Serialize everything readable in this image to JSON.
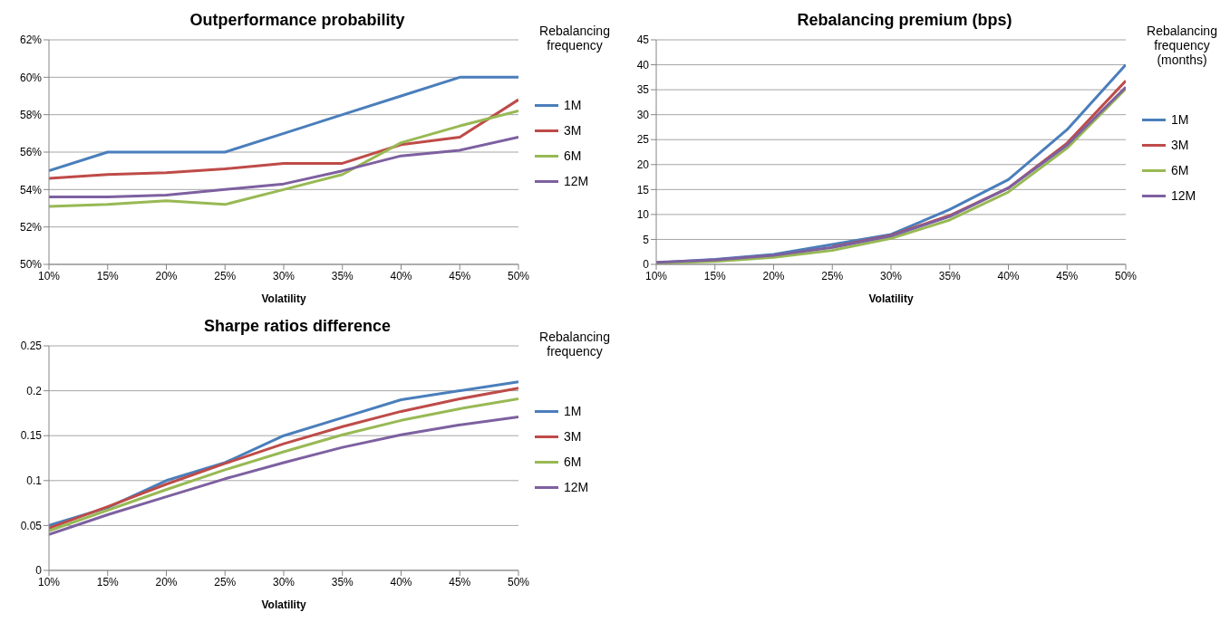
{
  "chart_data": [
    {
      "type": "line",
      "title": "Outperformance probability",
      "xlabel": "Volatility",
      "legend_title": "Rebalancing frequency",
      "legend": "right",
      "grid": "y",
      "categories": [
        "10%",
        "15%",
        "20%",
        "25%",
        "30%",
        "35%",
        "40%",
        "45%",
        "50%"
      ],
      "ylim": [
        50,
        62
      ],
      "yticks": [
        {
          "value": 50,
          "label": "50%"
        },
        {
          "value": 52,
          "label": "52%"
        },
        {
          "value": 54,
          "label": "54%"
        },
        {
          "value": 56,
          "label": "56%"
        },
        {
          "value": 58,
          "label": "58%"
        },
        {
          "value": 60,
          "label": "60%"
        },
        {
          "value": 62,
          "label": "62%"
        }
      ],
      "series": [
        {
          "name": "1M",
          "color": "#4a7ebb",
          "values": [
            55,
            56,
            56,
            56,
            57,
            58,
            59,
            60,
            60
          ]
        },
        {
          "name": "3M",
          "color": "#be4b48",
          "values": [
            54.6,
            54.8,
            54.9,
            55.1,
            55.4,
            55.4,
            56.4,
            56.8,
            58.8
          ]
        },
        {
          "name": "6M",
          "color": "#98b954",
          "values": [
            53.1,
            53.2,
            53.4,
            53.2,
            54,
            54.8,
            56.5,
            57.4,
            58.2
          ]
        },
        {
          "name": "12M",
          "color": "#7d60a0",
          "values": [
            53.6,
            53.6,
            53.7,
            54,
            54.3,
            55,
            55.8,
            56.1,
            56.8
          ]
        }
      ]
    },
    {
      "type": "line",
      "title": "Rebalancing premium (bps)",
      "xlabel": "Volatility",
      "legend_title": "Rebalancing frequency (months)",
      "legend": "right",
      "grid": "y",
      "categories": [
        "10%",
        "15%",
        "20%",
        "25%",
        "30%",
        "35%",
        "40%",
        "45%",
        "50%"
      ],
      "ylim": [
        0,
        45
      ],
      "yticks": [
        0,
        5,
        10,
        15,
        20,
        25,
        30,
        35,
        40,
        45
      ],
      "series": [
        {
          "name": "1M",
          "color": "#4a7ebb",
          "values": [
            0.3,
            1,
            2,
            4,
            6,
            11,
            17,
            27,
            40
          ]
        },
        {
          "name": "3M",
          "color": "#be4b48",
          "values": [
            null,
            null,
            null,
            3.5,
            5.8,
            9.8,
            15.3,
            24.3,
            36.8
          ]
        },
        {
          "name": "6M",
          "color": "#98b954",
          "values": [
            0.2,
            0.6,
            1.4,
            2.8,
            5.2,
            8.9,
            14.5,
            23.3,
            35.2
          ]
        },
        {
          "name": "12M",
          "color": "#7d60a0",
          "values": [
            0.4,
            0.9,
            1.8,
            3.4,
            5.7,
            9.6,
            15.3,
            23.9,
            35.5
          ]
        }
      ]
    },
    {
      "type": "line",
      "title": "Sharpe ratios difference",
      "xlabel": "Volatility",
      "legend_title": "Rebalancing frequency",
      "legend": "right",
      "grid": "y",
      "categories": [
        "10%",
        "15%",
        "20%",
        "25%",
        "30%",
        "35%",
        "40%",
        "45%",
        "50%"
      ],
      "ylim": [
        0,
        0.25
      ],
      "yticks": [
        0,
        0.05,
        0.1,
        0.15,
        0.2,
        0.25
      ],
      "series": [
        {
          "name": "1M",
          "color": "#4a7ebb",
          "values": [
            0.05,
            0.07,
            0.1,
            0.12,
            0.15,
            0.17,
            0.19,
            0.2,
            0.21
          ]
        },
        {
          "name": "3M",
          "color": "#be4b48",
          "values": [
            0.047,
            0.071,
            0.096,
            0.119,
            0.141,
            0.16,
            0.177,
            0.191,
            0.203
          ]
        },
        {
          "name": "6M",
          "color": "#98b954",
          "values": [
            0.044,
            0.067,
            0.09,
            0.112,
            0.132,
            0.151,
            0.167,
            0.18,
            0.191
          ]
        },
        {
          "name": "12M",
          "color": "#7d60a0",
          "values": [
            0.04,
            0.062,
            0.082,
            0.102,
            0.12,
            0.137,
            0.151,
            0.162,
            0.171
          ]
        }
      ]
    }
  ]
}
